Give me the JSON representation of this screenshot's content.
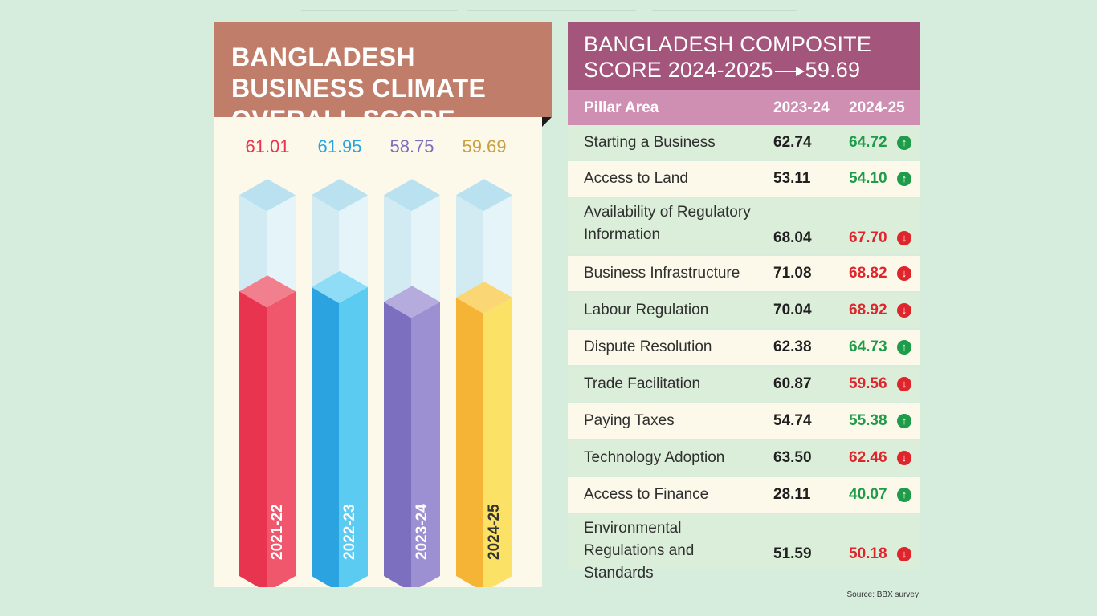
{
  "left_title": "BANGLADESH BUSINESS CLIMATE OVERALL SCORE",
  "right_title_main": "BANGLADESH COMPOSITE SCORE 2024-2025",
  "right_title_value": "59.69",
  "table_headers": {
    "pillar": "Pillar Area",
    "col1": "2023-24",
    "col2": "2024-25"
  },
  "rows": [
    {
      "name": "Starting a Business",
      "v1": "62.74",
      "v2": "64.72",
      "trend": "up"
    },
    {
      "name": "Access to Land",
      "v1": "53.11",
      "v2": "54.10",
      "trend": "up"
    },
    {
      "name": "Availability of Regulatory Information",
      "v1": "68.04",
      "v2": "67.70",
      "trend": "down"
    },
    {
      "name": "Business Infrastructure",
      "v1": "71.08",
      "v2": "68.82",
      "trend": "down"
    },
    {
      "name": "Labour Regulation",
      "v1": "70.04",
      "v2": "68.92",
      "trend": "down"
    },
    {
      "name": "Dispute Resolution",
      "v1": "62.38",
      "v2": "64.73",
      "trend": "up"
    },
    {
      "name": "Trade Facilitation",
      "v1": "60.87",
      "v2": "59.56",
      "trend": "down"
    },
    {
      "name": "Paying Taxes",
      "v1": "54.74",
      "v2": "55.38",
      "trend": "up"
    },
    {
      "name": "Technology Adoption",
      "v1": "63.50",
      "v2": "62.46",
      "trend": "down"
    },
    {
      "name": "Access to Finance",
      "v1": "28.11",
      "v2": "40.07",
      "trend": "up"
    },
    {
      "name": "Environmental Regulations and Standards",
      "v1": "51.59",
      "v2": "50.18",
      "trend": "down"
    }
  ],
  "source": "Source: BBX survey",
  "colors": {
    "bar_2021_22": "#e8344f",
    "bar_2022_23": "#2aa3e0",
    "bar_2023_24": "#7d6fbf",
    "bar_2024_25": "#f6b437",
    "up": "#1e9c4a",
    "down": "#e0242c"
  },
  "chart_data": {
    "type": "bar",
    "categories": [
      "2021-22",
      "2022-23",
      "2023-24",
      "2024-25"
    ],
    "values": [
      61.01,
      61.95,
      58.75,
      59.69
    ],
    "value_labels": [
      "61.01",
      "61.95",
      "58.75",
      "59.69"
    ],
    "title": "BANGLADESH BUSINESS CLIMATE OVERALL SCORE",
    "ylim": [
      0,
      100
    ],
    "grid": false
  }
}
